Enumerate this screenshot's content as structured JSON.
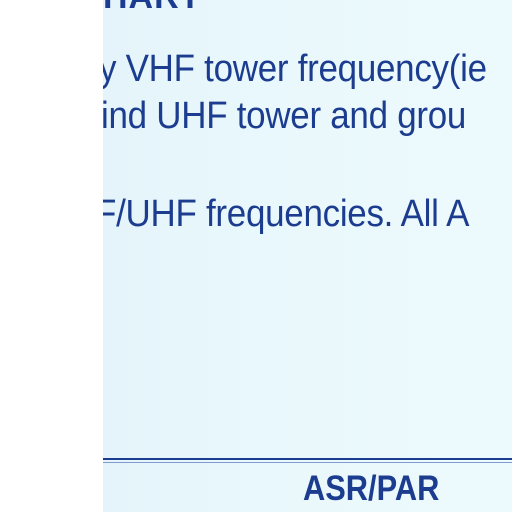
{
  "document": {
    "heading_fragment": "HART",
    "lines": [
      "y VHF tower frequency(ie",
      "ind UHF tower and grou",
      "F/UHF frequencies. All A"
    ],
    "table": {
      "column_header": "ASR/PAR"
    }
  },
  "colors": {
    "text": "#1c3d8f",
    "panel_background": "#e9f8fc",
    "margin_background": "#ffffff"
  }
}
